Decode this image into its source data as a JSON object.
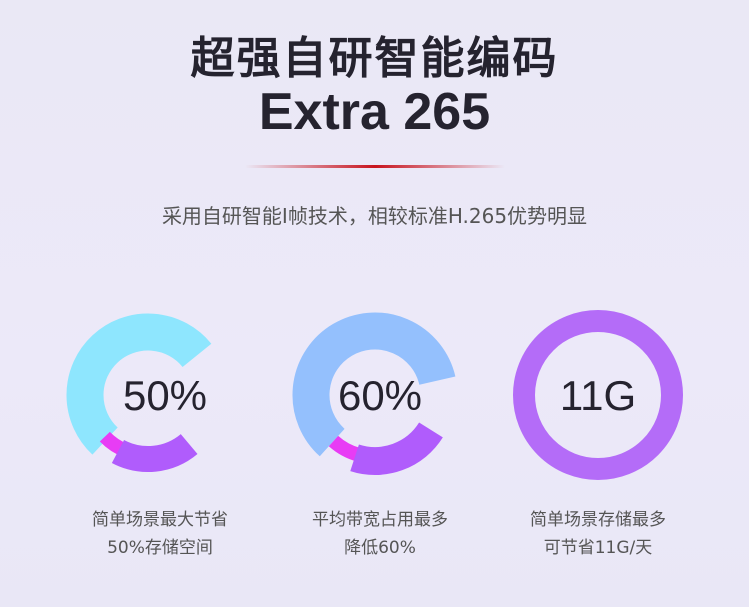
{
  "title": "超强自研智能编码",
  "subtitle": "Extra 265",
  "description": "采用自研智能I帧技术，相较标准H.265优势明显",
  "colors": {
    "cyan": "#8ee6fe",
    "blue": "#94c0fd",
    "purple": "#b05cfc",
    "magenta": "#e83cf5",
    "ring": "#b46cf8",
    "accent_line": "#c8141e"
  },
  "stats": [
    {
      "value": "50%",
      "caption_line1": "简单场景最大节省",
      "caption_line2": "50%存储空间"
    },
    {
      "value": "60%",
      "caption_line1": "平均带宽占用最多",
      "caption_line2": "降低60%"
    },
    {
      "value": "11G",
      "caption_line1": "简单场景存储最多",
      "caption_line2": "可节省11G/天"
    }
  ]
}
